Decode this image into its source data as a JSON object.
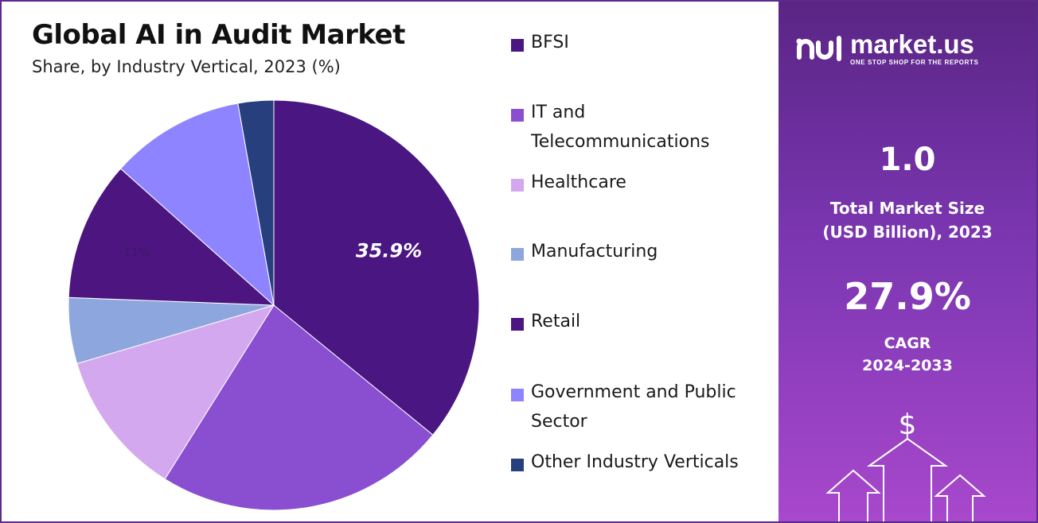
{
  "chart_data": {
    "type": "pie",
    "title": "Global AI in Audit Market",
    "subtitle": "Share, by Industry Vertical, 2023 (%)",
    "legend_position": "right",
    "slices": [
      {
        "label": "BFSI",
        "value": 35.9,
        "color": "#4a1682",
        "data_label": "35.9%"
      },
      {
        "label": "IT and Telecommunications",
        "value": 23.0,
        "color": "#8a4fd1",
        "data_label": ""
      },
      {
        "label": "Healthcare",
        "value": 11.5,
        "color": "#d4a8ef",
        "data_label": ""
      },
      {
        "label": "Manufacturing",
        "value": 5.2,
        "color": "#8ea6de",
        "data_label": ""
      },
      {
        "label": "Retail",
        "value": 11.0,
        "color": "#4d1580",
        "data_label": "11%"
      },
      {
        "label": "Government and Public Sector",
        "value": 10.6,
        "color": "#8e84ff",
        "data_label": ""
      },
      {
        "label": "Other Industry Verticals",
        "value": 2.8,
        "color": "#283f7e",
        "data_label": ""
      }
    ]
  },
  "legend": {
    "items": [
      {
        "line1": "BFSI",
        "line2": "",
        "color": "#4a1682"
      },
      {
        "line1": "IT and",
        "line2": "Telecommunications",
        "color": "#8a4fd1"
      },
      {
        "line1": "Healthcare",
        "line2": "",
        "color": "#d4a8ef"
      },
      {
        "line1": "Manufacturing",
        "line2": "",
        "color": "#8ea6de"
      },
      {
        "line1": "Retail",
        "line2": "",
        "color": "#4d1580"
      },
      {
        "line1": "Government and Public",
        "line2": "Sector",
        "color": "#8e84ff"
      },
      {
        "line1": "Other Industry Verticals",
        "line2": "",
        "color": "#283f7e"
      }
    ]
  },
  "side_panel": {
    "brand": "market.us",
    "tagline": "ONE STOP SHOP FOR THE REPORTS",
    "market_size_value": "1.0",
    "market_size_label_1": "Total Market Size",
    "market_size_label_2": "(USD Billion), 2023",
    "cagr_value": "27.9%",
    "cagr_label_1": "CAGR",
    "cagr_label_2": "2024-2033",
    "currency_symbol": "$"
  }
}
